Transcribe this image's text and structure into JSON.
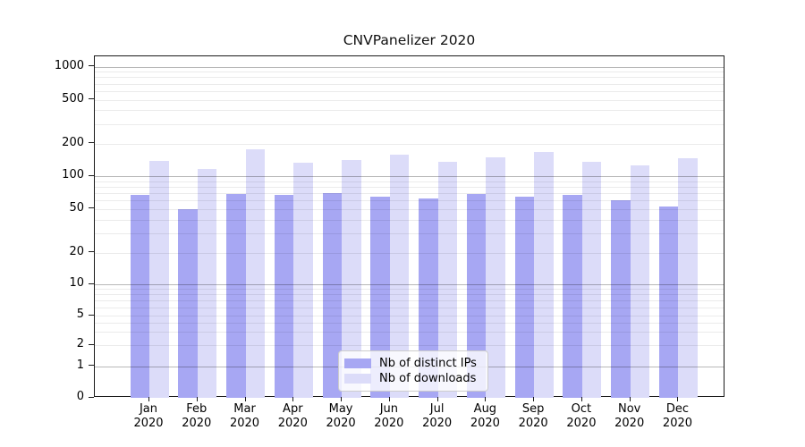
{
  "title": "CNVPanelizer 2020",
  "colors": {
    "distinct_ips": "#a7a7f3",
    "downloads": "#dcdcf9",
    "major_grid": "#b9b9b9",
    "minor_grid": "#ebebeb",
    "axis": "#1a1a1a"
  },
  "legend": {
    "entries": [
      {
        "label": "Nb of distinct IPs",
        "color": "#a7a7f3"
      },
      {
        "label": "Nb of downloads",
        "color": "#dcdcf9"
      }
    ]
  },
  "x_axis": {
    "months": [
      "Jan",
      "Feb",
      "Mar",
      "Apr",
      "May",
      "Jun",
      "Jul",
      "Aug",
      "Sep",
      "Oct",
      "Nov",
      "Dec"
    ],
    "year": "2020"
  },
  "y_axis": {
    "tick_labels": [
      "0",
      "1",
      "2",
      "5",
      "10",
      "20",
      "50",
      "100",
      "200",
      "500",
      "1000"
    ],
    "tick_values": [
      0,
      1,
      2,
      5,
      10,
      20,
      50,
      100,
      200,
      500,
      1000
    ],
    "minor_grid_values": [
      2,
      3,
      4,
      5,
      6,
      7,
      8,
      9,
      20,
      30,
      40,
      50,
      60,
      70,
      80,
      90,
      200,
      300,
      400,
      500,
      600,
      700,
      800,
      900
    ],
    "major_grid_values": [
      1,
      10,
      100,
      1000
    ]
  },
  "chart_data": {
    "type": "bar",
    "title": "CNVPanelizer 2020",
    "categories": [
      "Jan 2020",
      "Feb 2020",
      "Mar 2020",
      "Apr 2020",
      "May 2020",
      "Jun 2020",
      "Jul 2020",
      "Aug 2020",
      "Sep 2020",
      "Oct 2020",
      "Nov 2020",
      "Dec 2020"
    ],
    "series": [
      {
        "name": "Nb of distinct IPs",
        "color": "#a7a7f3",
        "values": [
          67,
          50,
          69,
          67,
          70,
          65,
          62,
          69,
          65,
          67,
          60,
          53
        ]
      },
      {
        "name": "Nb of downloads",
        "color": "#dcdcf9",
        "values": [
          139,
          118,
          178,
          134,
          141,
          159,
          135,
          149,
          167,
          136,
          125,
          147
        ]
      }
    ],
    "xlabel": "",
    "ylabel": "",
    "yscale": "symlog",
    "yticks": [
      0,
      1,
      2,
      5,
      10,
      20,
      50,
      100,
      200,
      500,
      1000
    ],
    "ylim": [
      0,
      1240
    ],
    "grid": true,
    "grid_on_top": true,
    "legend_position": "lower center"
  }
}
